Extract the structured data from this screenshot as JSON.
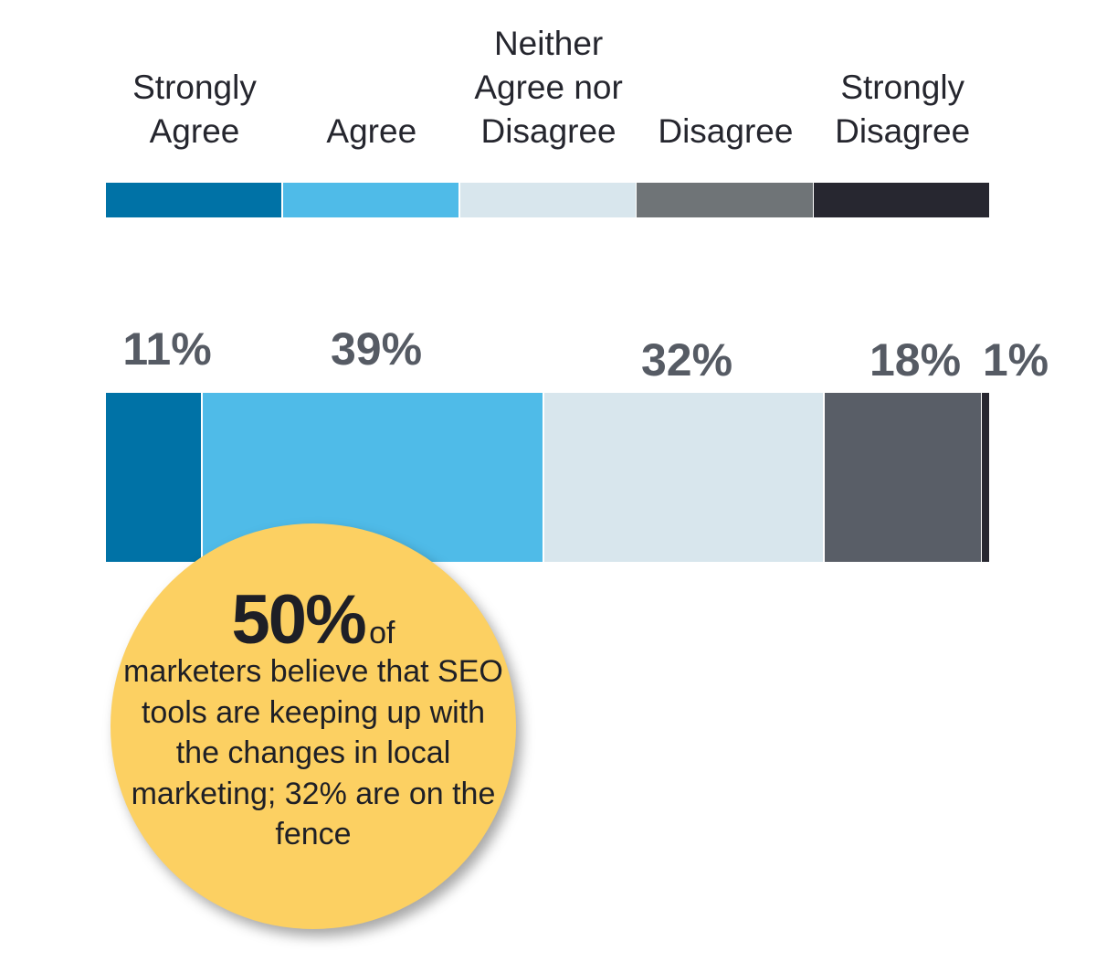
{
  "chart_data": {
    "type": "bar",
    "orientation": "horizontal-stacked",
    "categories": [
      "Strongly\nAgree",
      "Agree",
      "Neither\nAgree nor\nDisagree",
      "Disagree",
      "Strongly\nDisagree"
    ],
    "values": [
      11,
      39,
      32,
      18,
      1
    ],
    "value_labels": [
      "11%",
      "39%",
      "32%",
      "18%",
      "1%"
    ],
    "colors": [
      "#0072a6",
      "#4fbbe8",
      "#d8e6ed",
      "#6f7477",
      "#272730"
    ],
    "bar_colors": [
      "#0072a6",
      "#4fbbe8",
      "#d8e6ed",
      "#595e67",
      "#272730"
    ],
    "legend_placement": "top",
    "grid": false
  },
  "callout": {
    "headline": "50%",
    "headline_suffix": "of",
    "text": "marketers believe that SEO tools are keeping up with the changes in local marketing; 32% are on the fence",
    "color": "#fcd062"
  }
}
